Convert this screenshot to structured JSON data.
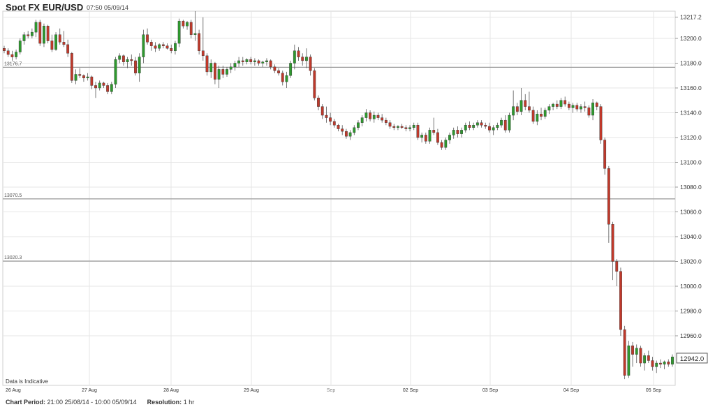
{
  "header": {
    "title": "Spot FX EUR/USD",
    "timestamp": "07:50 05/09/14"
  },
  "footer": {
    "chart_period_label": "Chart Period:",
    "chart_period_value": "21:00 25/08/14 - 10:00 05/09/14",
    "resolution_label": "Resolution:",
    "resolution_value": "1 hr"
  },
  "note": "Data is Indicative",
  "colors": {
    "up": "#2e9a2e",
    "down": "#c0392b",
    "grid": "#e6e6e6",
    "ref_line": "#999999"
  },
  "chart_data": {
    "type": "candlestick",
    "title": "Spot FX EUR/USD",
    "ylim": [
      12925,
      13225
    ],
    "y_ticks": [
      "13217.2",
      "13200.0",
      "13180.0",
      "13160.0",
      "13140.0",
      "13120.0",
      "13100.0",
      "13080.0",
      "13060.0",
      "13040.0",
      "13020.0",
      "13000.0",
      "12980.0",
      "12960.0",
      "12942.0"
    ],
    "x_ticks": [
      "26 Aug",
      "27 Aug",
      "28 Aug",
      "29 Aug",
      "Sep",
      "02 Sep",
      "03 Sep",
      "04 Sep",
      "05 Sep"
    ],
    "reference_lines": [
      {
        "label": "13176.7",
        "value": 13176.7
      },
      {
        "label": "13070.5",
        "value": 13070.5
      },
      {
        "label": "13020.3",
        "value": 13020.3
      }
    ],
    "last_price": {
      "label": "12942.0",
      "value": 12942.0
    },
    "candles": [
      [
        13192,
        13194,
        13188,
        13190
      ],
      [
        13190,
        13192,
        13185,
        13187
      ],
      [
        13187,
        13190,
        13182,
        13185
      ],
      [
        13185,
        13191,
        13183,
        13189
      ],
      [
        13189,
        13200,
        13187,
        13198
      ],
      [
        13198,
        13205,
        13195,
        13203
      ],
      [
        13203,
        13206,
        13200,
        13202
      ],
      [
        13202,
        13208,
        13200,
        13205
      ],
      [
        13205,
        13215,
        13201,
        13213
      ],
      [
        13213,
        13215,
        13194,
        13196
      ],
      [
        13196,
        13212,
        13193,
        13210
      ],
      [
        13210,
        13211,
        13196,
        13198
      ],
      [
        13198,
        13203,
        13189,
        13191
      ],
      [
        13191,
        13205,
        13190,
        13203
      ],
      [
        13203,
        13208,
        13195,
        13197
      ],
      [
        13197,
        13206,
        13193,
        13195
      ],
      [
        13195,
        13199,
        13185,
        13188
      ],
      [
        13188,
        13189,
        13164,
        13166
      ],
      [
        13166,
        13175,
        13163,
        13171
      ],
      [
        13171,
        13176,
        13168,
        13170
      ],
      [
        13170,
        13171,
        13165,
        13168
      ],
      [
        13168,
        13172,
        13166,
        13169
      ],
      [
        13169,
        13170,
        13159,
        13162
      ],
      [
        13162,
        13165,
        13152,
        13160
      ],
      [
        13160,
        13166,
        13158,
        13164
      ],
      [
        13164,
        13165,
        13160,
        13162
      ],
      [
        13162,
        13164,
        13155,
        13157
      ],
      [
        13157,
        13165,
        13155,
        13163
      ],
      [
        13163,
        13185,
        13160,
        13183
      ],
      [
        13183,
        13188,
        13180,
        13186
      ],
      [
        13186,
        13187,
        13178,
        13181
      ],
      [
        13181,
        13185,
        13176,
        13183
      ],
      [
        13183,
        13187,
        13178,
        13182
      ],
      [
        13182,
        13185,
        13170,
        13172
      ],
      [
        13172,
        13188,
        13165,
        13185
      ],
      [
        13185,
        13207,
        13180,
        13203
      ],
      [
        13203,
        13208,
        13195,
        13197
      ],
      [
        13197,
        13199,
        13190,
        13194
      ],
      [
        13194,
        13197,
        13189,
        13192
      ],
      [
        13192,
        13196,
        13190,
        13195
      ],
      [
        13195,
        13197,
        13192,
        13194
      ],
      [
        13194,
        13196,
        13191,
        13192
      ],
      [
        13192,
        13195,
        13188,
        13190
      ],
      [
        13190,
        13198,
        13187,
        13196
      ],
      [
        13196,
        13216,
        13193,
        13214
      ],
      [
        13214,
        13215,
        13208,
        13210
      ],
      [
        13210,
        13214,
        13207,
        13213
      ],
      [
        13213,
        13215,
        13200,
        13203
      ],
      [
        13203,
        13222,
        13198,
        13204
      ],
      [
        13204,
        13207,
        13187,
        13190
      ],
      [
        13190,
        13217,
        13182,
        13186
      ],
      [
        13186,
        13188,
        13170,
        13173
      ],
      [
        13173,
        13183,
        13168,
        13180
      ],
      [
        13180,
        13181,
        13163,
        13167
      ],
      [
        13167,
        13178,
        13160,
        13175
      ],
      [
        13175,
        13178,
        13168,
        13171
      ],
      [
        13171,
        13177,
        13169,
        13175
      ],
      [
        13175,
        13180,
        13172,
        13177
      ],
      [
        13177,
        13182,
        13174,
        13180
      ],
      [
        13180,
        13185,
        13177,
        13182
      ],
      [
        13182,
        13185,
        13178,
        13181
      ],
      [
        13181,
        13184,
        13179,
        13183
      ],
      [
        13183,
        13185,
        13179,
        13181
      ],
      [
        13181,
        13184,
        13178,
        13182
      ],
      [
        13182,
        13183,
        13178,
        13180
      ],
      [
        13180,
        13182,
        13177,
        13181
      ],
      [
        13181,
        13184,
        13178,
        13182
      ],
      [
        13182,
        13183,
        13175,
        13177
      ],
      [
        13177,
        13179,
        13172,
        13174
      ],
      [
        13174,
        13176,
        13170,
        13172
      ],
      [
        13172,
        13174,
        13162,
        13165
      ],
      [
        13165,
        13173,
        13160,
        13170
      ],
      [
        13170,
        13182,
        13168,
        13180
      ],
      [
        13180,
        13195,
        13175,
        13190
      ],
      [
        13190,
        13193,
        13182,
        13185
      ],
      [
        13185,
        13188,
        13178,
        13182
      ],
      [
        13182,
        13192,
        13176,
        13185
      ],
      [
        13185,
        13187,
        13170,
        13174
      ],
      [
        13174,
        13176,
        13150,
        13152
      ],
      [
        13152,
        13154,
        13142,
        13145
      ],
      [
        13145,
        13147,
        13135,
        13138
      ],
      [
        13138,
        13145,
        13132,
        13136
      ],
      [
        13136,
        13140,
        13130,
        13133
      ],
      [
        13133,
        13135,
        13128,
        13130
      ],
      [
        13130,
        13131,
        13125,
        13127
      ],
      [
        13127,
        13130,
        13122,
        13125
      ],
      [
        13125,
        13127,
        13119,
        13121
      ],
      [
        13121,
        13126,
        13118,
        13124
      ],
      [
        13124,
        13130,
        13122,
        13128
      ],
      [
        13128,
        13134,
        13126,
        13132
      ],
      [
        13132,
        13138,
        13129,
        13136
      ],
      [
        13136,
        13143,
        13133,
        13140
      ],
      [
        13140,
        13142,
        13133,
        13135
      ],
      [
        13135,
        13141,
        13132,
        13138
      ],
      [
        13138,
        13140,
        13134,
        13136
      ],
      [
        13136,
        13139,
        13132,
        13134
      ],
      [
        13134,
        13136,
        13130,
        13132
      ],
      [
        13132,
        13134,
        13127,
        13129
      ],
      [
        13129,
        13131,
        13126,
        13128
      ],
      [
        13128,
        13130,
        13126,
        13129
      ],
      [
        13129,
        13131,
        13127,
        13128
      ],
      [
        13128,
        13130,
        13125,
        13127
      ],
      [
        13127,
        13130,
        13125,
        13128
      ],
      [
        13128,
        13132,
        13126,
        13130
      ],
      [
        13130,
        13132,
        13118,
        13120
      ],
      [
        13120,
        13124,
        13116,
        13122
      ],
      [
        13122,
        13124,
        13115,
        13117
      ],
      [
        13117,
        13128,
        13115,
        13126
      ],
      [
        13126,
        13136,
        13122,
        13124
      ],
      [
        13124,
        13127,
        13114,
        13116
      ],
      [
        13116,
        13118,
        13110,
        13112
      ],
      [
        13112,
        13120,
        13110,
        13118
      ],
      [
        13118,
        13124,
        13115,
        13122
      ],
      [
        13122,
        13128,
        13119,
        13126
      ],
      [
        13126,
        13129,
        13120,
        13123
      ],
      [
        13123,
        13128,
        13120,
        13126
      ],
      [
        13126,
        13132,
        13124,
        13130
      ],
      [
        13130,
        13133,
        13126,
        13128
      ],
      [
        13128,
        13132,
        13126,
        13130
      ],
      [
        13130,
        13134,
        13128,
        13132
      ],
      [
        13132,
        13134,
        13128,
        13130
      ],
      [
        13130,
        13132,
        13127,
        13129
      ],
      [
        13129,
        13132,
        13124,
        13126
      ],
      [
        13126,
        13130,
        13122,
        13128
      ],
      [
        13128,
        13132,
        13126,
        13130
      ],
      [
        13130,
        13136,
        13128,
        13134
      ],
      [
        13134,
        13138,
        13124,
        13126
      ],
      [
        13126,
        13140,
        13124,
        13138
      ],
      [
        13138,
        13158,
        13134,
        13145
      ],
      [
        13145,
        13148,
        13138,
        13141
      ],
      [
        13141,
        13160,
        13138,
        13150
      ],
      [
        13150,
        13155,
        13142,
        13145
      ],
      [
        13145,
        13157,
        13140,
        13142
      ],
      [
        13142,
        13145,
        13131,
        13133
      ],
      [
        13133,
        13142,
        13130,
        13139
      ],
      [
        13139,
        13144,
        13134,
        13137
      ],
      [
        13137,
        13144,
        13135,
        13142
      ],
      [
        13142,
        13147,
        13139,
        13145
      ],
      [
        13145,
        13148,
        13142,
        13147
      ],
      [
        13147,
        13150,
        13143,
        13145
      ],
      [
        13145,
        13152,
        13143,
        13150
      ],
      [
        13150,
        13153,
        13145,
        13147
      ],
      [
        13147,
        13149,
        13142,
        13144
      ],
      [
        13144,
        13148,
        13140,
        13146
      ],
      [
        13146,
        13148,
        13141,
        13143
      ],
      [
        13143,
        13147,
        13140,
        13145
      ],
      [
        13145,
        13149,
        13141,
        13144
      ],
      [
        13144,
        13146,
        13136,
        13138
      ],
      [
        13138,
        13151,
        13134,
        13148
      ],
      [
        13148,
        13149,
        13142,
        13145
      ],
      [
        13145,
        13147,
        13115,
        13118
      ],
      [
        13118,
        13120,
        13090,
        13095
      ],
      [
        13095,
        13097,
        13035,
        13050
      ],
      [
        13050,
        13052,
        13005,
        13020
      ],
      [
        13020,
        13022,
        13000,
        13012
      ],
      [
        13012,
        13015,
        12960,
        12965
      ],
      [
        12965,
        12968,
        12925,
        12928
      ],
      [
        12928,
        12956,
        12926,
        12952
      ],
      [
        12952,
        12955,
        12935,
        12945
      ],
      [
        12945,
        12953,
        12938,
        12950
      ],
      [
        12950,
        12952,
        12935,
        12938
      ],
      [
        12938,
        12946,
        12932,
        12944
      ],
      [
        12944,
        12948,
        12938,
        12940
      ],
      [
        12940,
        12943,
        12932,
        12935
      ],
      [
        12935,
        12940,
        12930,
        12938
      ],
      [
        12938,
        12941,
        12934,
        12937
      ],
      [
        12937,
        12940,
        12933,
        12939
      ],
      [
        12939,
        12941,
        12935,
        12937
      ],
      [
        12937,
        12945,
        12935,
        12943
      ]
    ]
  }
}
